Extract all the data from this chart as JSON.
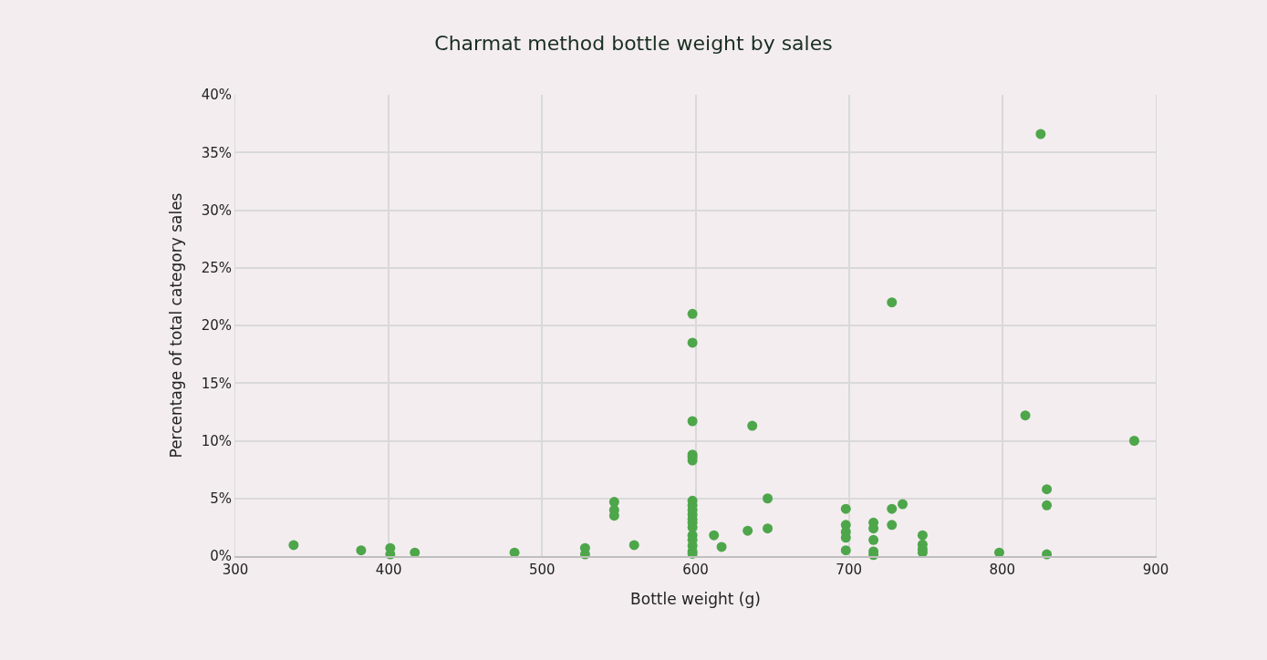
{
  "chart_data": {
    "type": "scatter",
    "title": "Charmat method bottle weight by sales",
    "xlabel": "Bottle weight (g)",
    "ylabel": "Percentage of total category sales",
    "x": [
      338,
      382,
      401,
      401,
      417,
      482,
      528,
      528,
      547,
      547,
      547,
      560,
      598,
      598,
      598,
      598,
      598,
      598,
      598,
      598,
      598,
      598,
      598,
      598,
      598,
      598,
      598,
      598,
      598,
      598,
      612,
      617,
      634,
      637,
      647,
      647,
      698,
      698,
      698,
      698,
      698,
      716,
      716,
      716,
      716,
      716,
      728,
      728,
      728,
      735,
      748,
      748,
      748,
      748,
      798,
      815,
      825,
      829,
      829,
      829,
      886
    ],
    "values": [
      0.95,
      0.5,
      0.7,
      0.15,
      0.3,
      0.3,
      0.7,
      0.15,
      4.7,
      4.0,
      3.5,
      0.95,
      21.0,
      18.5,
      11.7,
      8.8,
      8.6,
      8.3,
      4.8,
      4.4,
      4.0,
      3.6,
      3.2,
      2.5,
      1.8,
      1.4,
      0.9,
      0.4,
      0.2,
      2.9,
      1.8,
      0.8,
      2.2,
      11.3,
      5.0,
      2.4,
      4.1,
      2.7,
      2.1,
      1.6,
      0.5,
      2.9,
      2.4,
      1.4,
      0.4,
      0.1,
      22.0,
      4.1,
      2.7,
      4.5,
      1.8,
      1.0,
      0.6,
      0.3,
      0.3,
      12.2,
      36.6,
      5.8,
      4.4,
      0.15,
      10.0
    ],
    "color": "#4ea64a",
    "marker": "circle",
    "grid": true,
    "xlim": [
      300,
      900
    ],
    "xticks": [
      300,
      400,
      500,
      600,
      700,
      800,
      900
    ],
    "ylim": [
      0,
      40
    ],
    "yticks": [
      {
        "value": 0,
        "label": "0%"
      },
      {
        "value": 5,
        "label": "5%"
      },
      {
        "value": 10,
        "label": "10%"
      },
      {
        "value": 15,
        "label": "15%"
      },
      {
        "value": 20,
        "label": "20%"
      },
      {
        "value": 25,
        "label": "25%"
      },
      {
        "value": 30,
        "label": "30%"
      },
      {
        "value": 35,
        "label": "35%"
      },
      {
        "value": 40,
        "label": "40%"
      }
    ]
  }
}
